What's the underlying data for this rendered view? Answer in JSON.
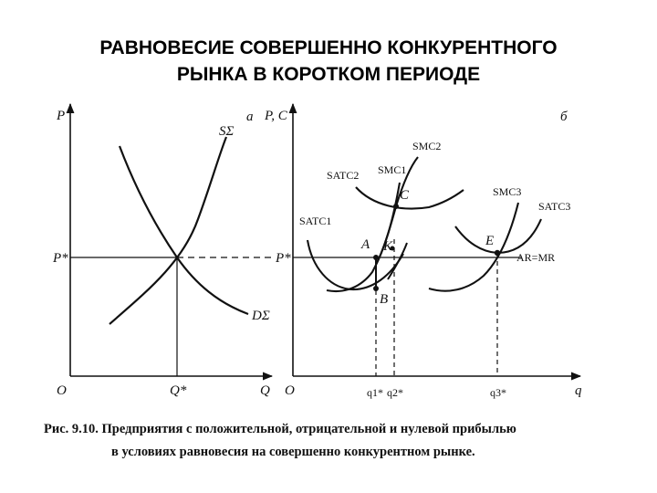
{
  "slide": {
    "title_line1": "РАВНОВЕСИЕ СОВЕРШЕННО КОНКУРЕНТНОГО",
    "title_line2": "РЫНКА В КОРОТКОМ ПЕРИОДЕ"
  },
  "panel_a": {
    "panel_letter": "а",
    "y_axis": "P",
    "x_axis": "Q",
    "origin": "O",
    "price_label": "P*",
    "quantity_label": "Q*",
    "supply": "SΣ",
    "demand": "DΣ"
  },
  "panel_b": {
    "panel_letter": "б",
    "y_axis": "P, C",
    "x_axis": "q",
    "origin": "O",
    "price_label": "P*",
    "price_line": "AR=MR",
    "curves": {
      "satc1": "SATC1",
      "smc1": "SMC1",
      "satc2": "SATC2",
      "smc2": "SMC2",
      "smc3": "SMC3",
      "satc3": "SATC3"
    },
    "points": {
      "a": "A",
      "b": "B",
      "c": "C",
      "k": "K",
      "e": "E"
    },
    "q_labels": {
      "q1": "q1*",
      "q2": "q2*",
      "q3": "q3*"
    }
  },
  "caption": {
    "line1": "Рис. 9.10. Предприятия с положительной, отрицательной и нулевой прибылью",
    "line2": "в условиях равновесия на совершенно конкурентном рынке."
  }
}
